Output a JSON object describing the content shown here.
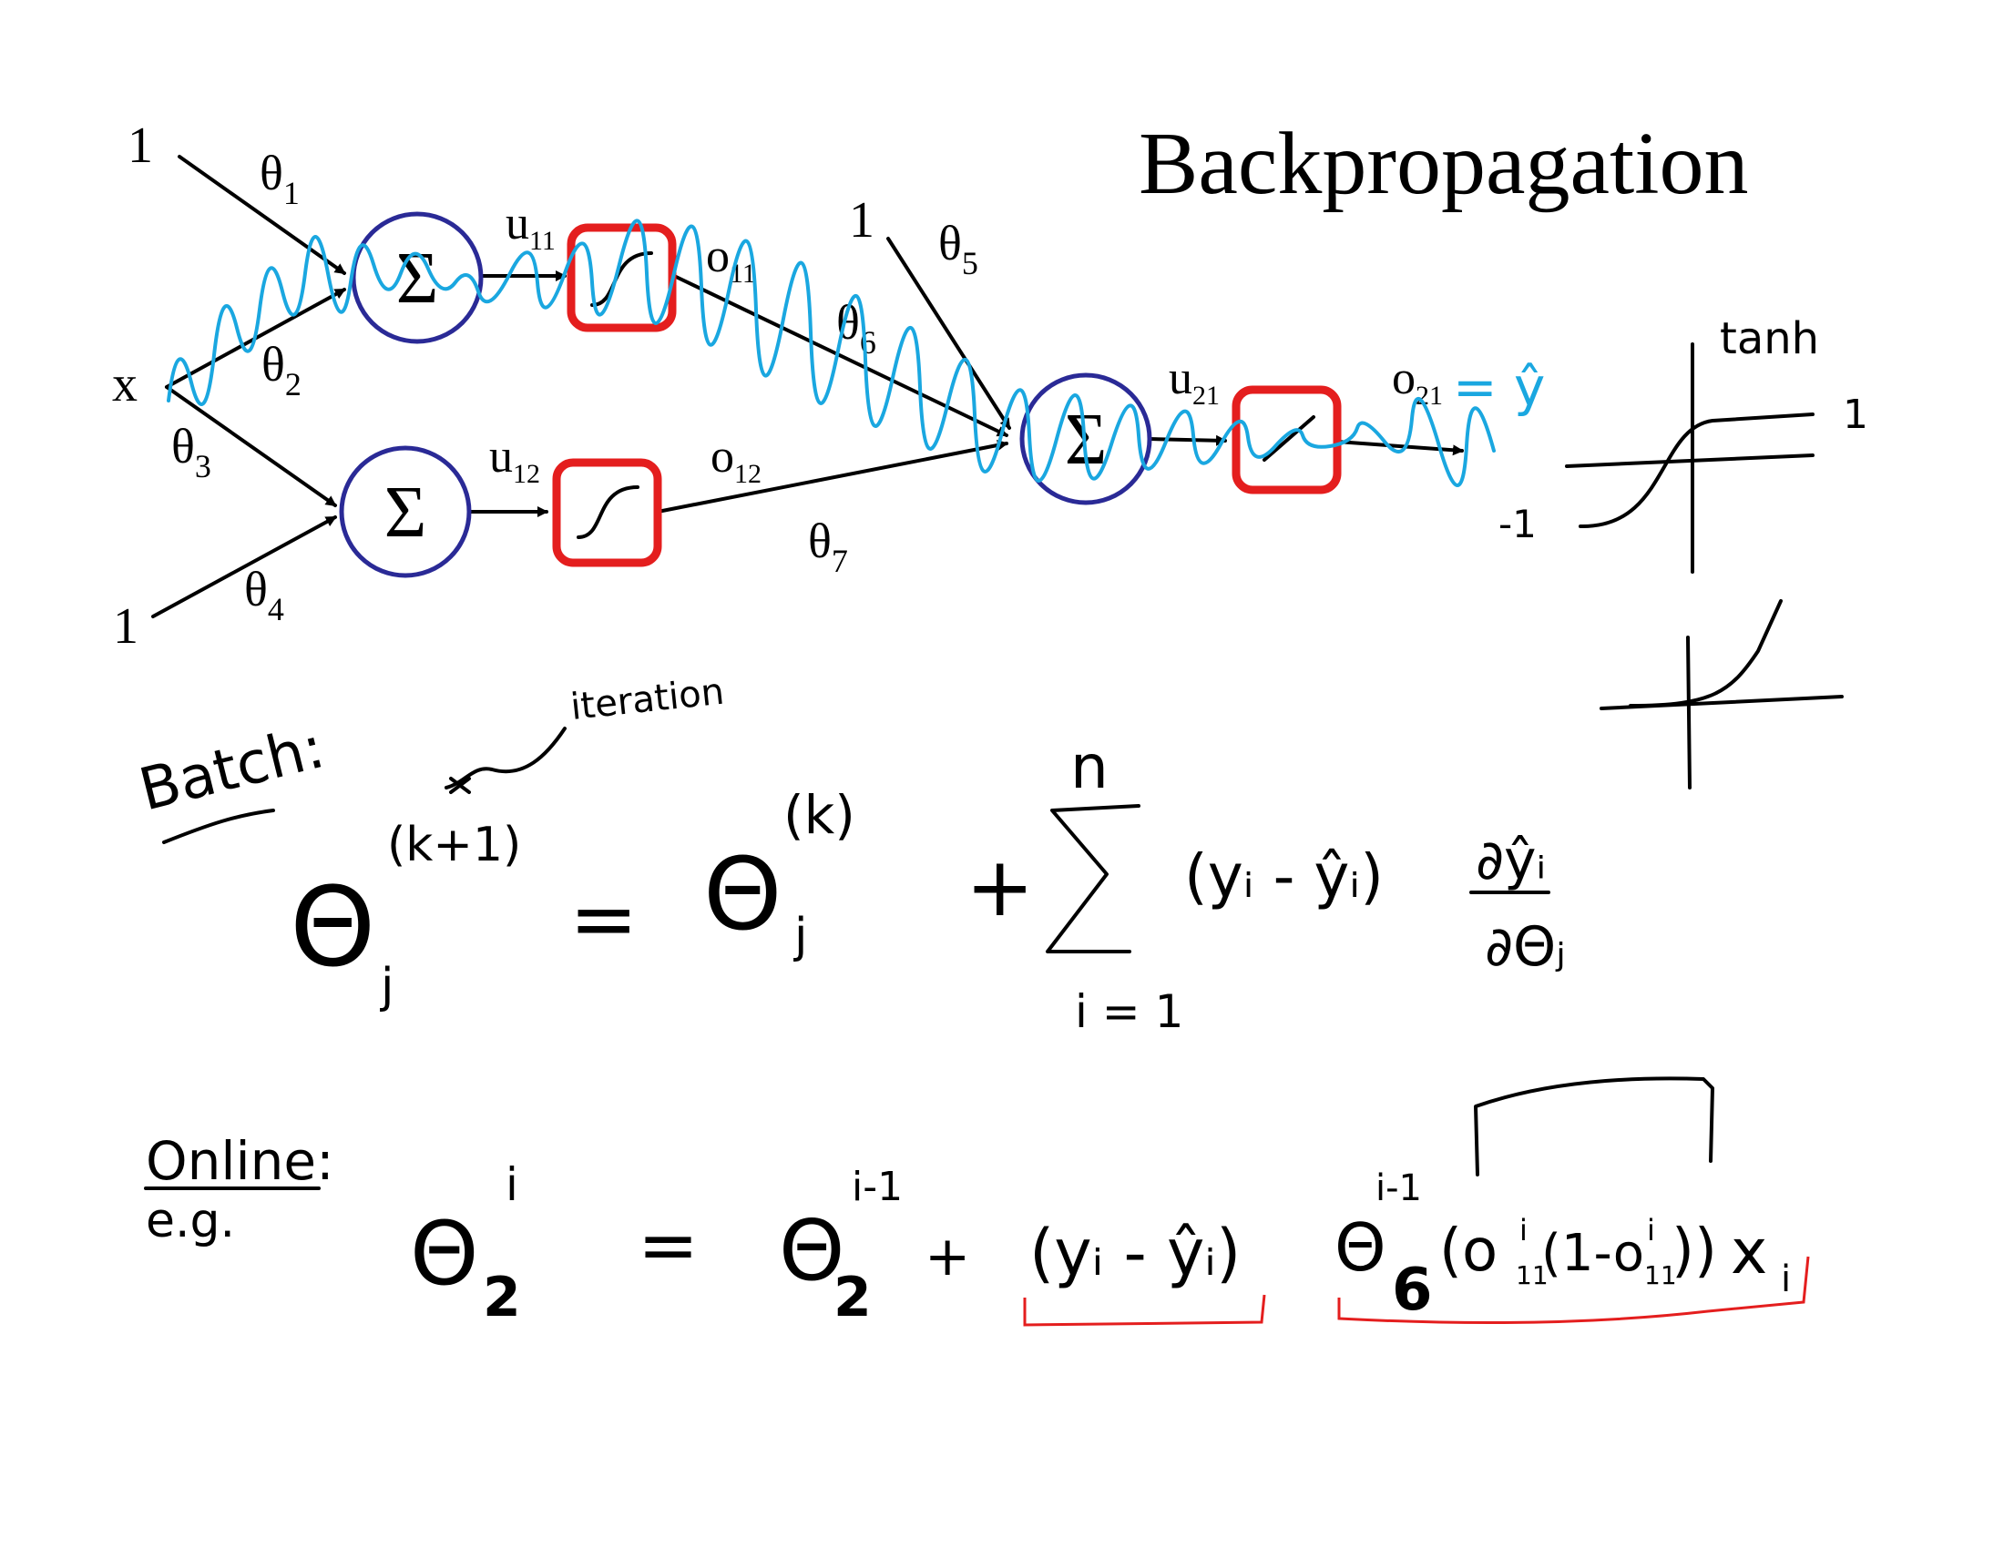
{
  "title": "Backpropagation",
  "network": {
    "input_label": "x",
    "bias_top": "1",
    "bias_bottom": "1",
    "bias_out": "1",
    "sum_symbol": "Σ",
    "weights": {
      "w1": "θ1",
      "w2": "θ2",
      "w3": "θ3",
      "w4": "θ4",
      "w5": "θ5",
      "w6": "θ6",
      "w7": "θ7"
    },
    "signals": {
      "u11": "u11",
      "o11": "o11",
      "u12": "u12",
      "o12": "o12",
      "u21": "u21",
      "o21": "o21"
    },
    "output_note": "= ŷ"
  },
  "side_plots": {
    "tanh_label": "tanh",
    "tanh_pos": "1",
    "tanh_neg": "-1"
  },
  "batch": {
    "label": "Batch:",
    "annotation": "iteration",
    "theta": "Θ",
    "lhs_sup": "(k+1)",
    "sub_j": "j",
    "equals": "=",
    "rhs_sup": "(k)",
    "plus": "+",
    "sum_top": "n",
    "sum_bottom": "i = 1",
    "residual": "(yᵢ - ŷᵢ)",
    "deriv_num": "∂ŷᵢ",
    "deriv_den": "∂Θⱼ"
  },
  "online": {
    "label": "Online:",
    "eg": "e.g.",
    "theta": "Θ",
    "lhs_sup": "i",
    "sub_2": "2",
    "equals": "=",
    "rhs_sup": "i-1",
    "plus": "+",
    "residual": "(yᵢ - ŷᵢ)",
    "theta6_sup": "i-1",
    "sub_6": "6",
    "tail": "(o",
    "o11a_sup": "i",
    "o11a_sub": "11",
    "mid": "(1-o",
    "o11b_sup": "i",
    "o11b_sub": "11",
    "close": "))",
    "x": "x",
    "x_sub": "i"
  }
}
